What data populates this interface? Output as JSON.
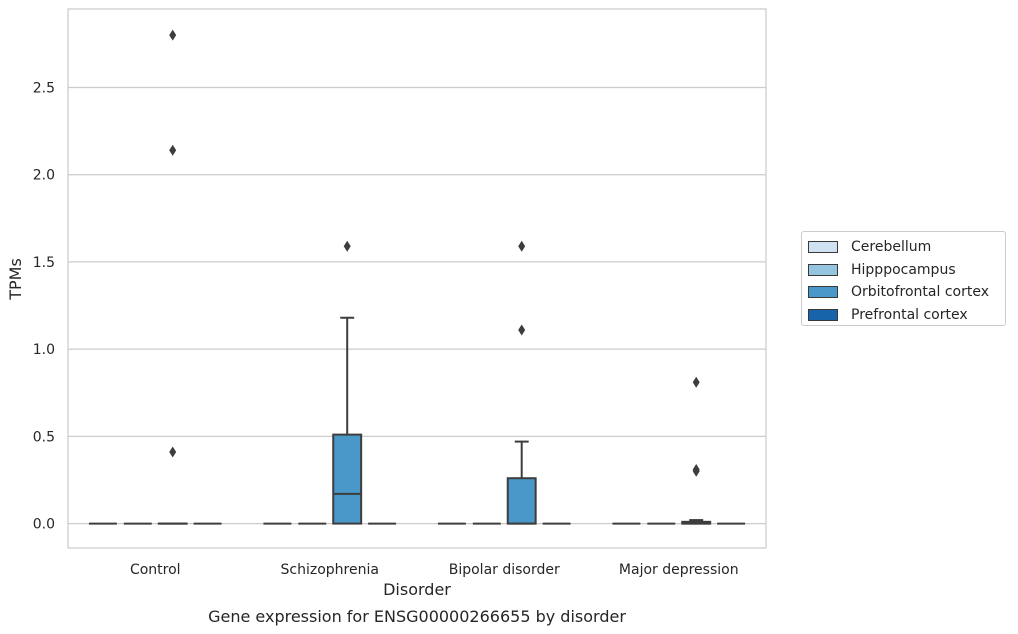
{
  "chart_data": {
    "type": "box",
    "title": "Gene expression for ENSG00000266655 by disorder",
    "xlabel": "Disorder",
    "ylabel": "TPMs",
    "ylim": [
      -0.14,
      2.95
    ],
    "yticks": [
      "0.0",
      "0.5",
      "1.0",
      "1.5",
      "2.0",
      "2.5"
    ],
    "ytick_values": [
      0.0,
      0.5,
      1.0,
      1.5,
      2.0,
      2.5
    ],
    "categories": [
      "Control",
      "Schizophrenia",
      "Bipolar disorder",
      "Major depression"
    ],
    "grid": "horizontal",
    "legend_position": "right",
    "series": [
      {
        "name": "Cerebellum",
        "color": "#d0e1f2"
      },
      {
        "name": "Hipppocampus",
        "color": "#94c4df"
      },
      {
        "name": "Orbitofrontal cortex",
        "color": "#4a98c9"
      },
      {
        "name": "Prefrontal cortex",
        "color": "#1764ab"
      }
    ],
    "boxes": [
      {
        "category": "Control",
        "series": "Orbitofrontal cortex",
        "q1": 0.0,
        "median": 0.0,
        "q3": 0.0,
        "whisker_low": 0.0,
        "whisker_high": 0.0,
        "outliers": [
          0.41,
          2.14,
          2.8
        ]
      },
      {
        "category": "Schizophrenia",
        "series": "Orbitofrontal cortex",
        "q1": 0.0,
        "median": 0.17,
        "q3": 0.51,
        "whisker_low": 0.0,
        "whisker_high": 1.18,
        "outliers": [
          1.59
        ]
      },
      {
        "category": "Bipolar disorder",
        "series": "Orbitofrontal cortex",
        "q1": 0.0,
        "median": 0.0,
        "q3": 0.26,
        "whisker_low": 0.0,
        "whisker_high": 0.47,
        "outliers": [
          1.11,
          1.59
        ]
      },
      {
        "category": "Major depression",
        "series": "Orbitofrontal cortex",
        "q1": 0.0,
        "median": 0.0,
        "q3": 0.01,
        "whisker_low": 0.0,
        "whisker_high": 0.02,
        "outliers": [
          0.3,
          0.31,
          0.81
        ]
      }
    ]
  }
}
